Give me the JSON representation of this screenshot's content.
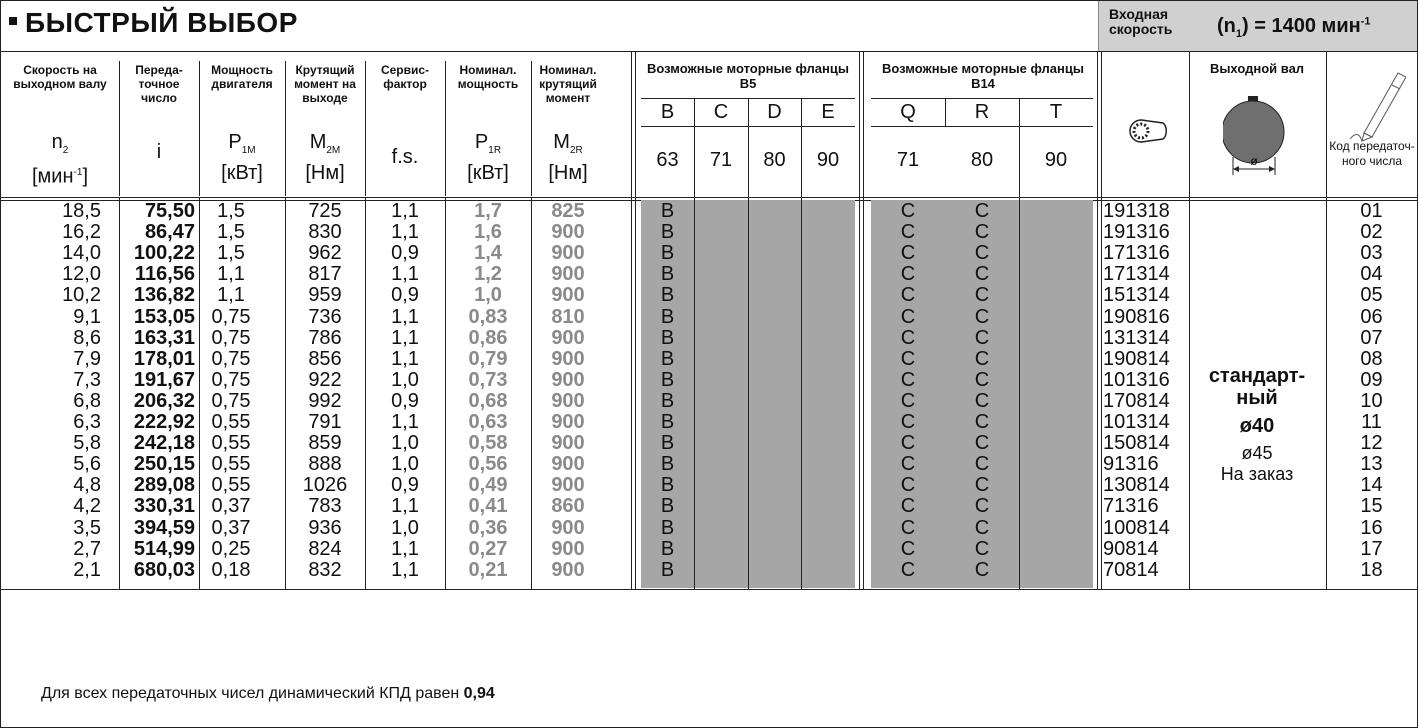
{
  "title": "БЫСТРЫЙ ВЫБОР",
  "input_speed": {
    "label_1": "Входная",
    "label_2": "скорость",
    "value_pre": "(n",
    "value_sub": "1",
    "value_mid": ") = 1400 мин",
    "value_sup": "-1"
  },
  "headers": {
    "speed": {
      "t": "Скорость на выходном валу",
      "sym": "n",
      "sub": "2",
      "unit": "[мин",
      "unit_sup": "-1",
      "unit_end": "]"
    },
    "ratio": {
      "t": "Переда-точное число",
      "sym": "i"
    },
    "power": {
      "t": "Мощность двигателя",
      "sym": "P",
      "sub": "1M",
      "unit": "[кВт]"
    },
    "torque": {
      "t": "Крутящий момент на выходе",
      "sym": "M",
      "sub": "2M",
      "unit": "[Нм]"
    },
    "service": {
      "t": "Сервис-фактор",
      "sym": "f.s."
    },
    "nom_power": {
      "t": "Номинал. мощность",
      "sym": "P",
      "sub": "1R",
      "unit": "[кВт]"
    },
    "nom_torque": {
      "t": "Номинал. крутящий момент",
      "sym": "M",
      "sub": "2R",
      "unit": "[Нм]"
    },
    "b5": {
      "t": "Возможные моторные фланцы B5",
      "cols": [
        "B",
        "C",
        "D",
        "E"
      ],
      "sizes": [
        "63",
        "71",
        "80",
        "90"
      ]
    },
    "b14": {
      "t": "Возможные моторные фланцы B14",
      "cols": [
        "Q",
        "R",
        "T"
      ],
      "sizes": [
        "71",
        "80",
        "90"
      ]
    },
    "shaft": {
      "t": "Выходной вал",
      "diameter_symbol": "ø"
    },
    "code": {
      "t": "Код передаточ-ного числа"
    }
  },
  "rows": [
    {
      "n2": "18,5",
      "i": "75,50",
      "p1m": "1,5",
      "m2m": "725",
      "fs": "1,1",
      "p1r": "1,7",
      "m2r": "825",
      "b": "B",
      "q": "C",
      "r": "C",
      "art": "191318",
      "code": "01"
    },
    {
      "n2": "16,2",
      "i": "86,47",
      "p1m": "1,5",
      "m2m": "830",
      "fs": "1,1",
      "p1r": "1,6",
      "m2r": "900",
      "b": "B",
      "q": "C",
      "r": "C",
      "art": "191316",
      "code": "02"
    },
    {
      "n2": "14,0",
      "i": "100,22",
      "p1m": "1,5",
      "m2m": "962",
      "fs": "0,9",
      "p1r": "1,4",
      "m2r": "900",
      "b": "B",
      "q": "C",
      "r": "C",
      "art": "171316",
      "code": "03"
    },
    {
      "n2": "12,0",
      "i": "116,56",
      "p1m": "1,1",
      "m2m": "817",
      "fs": "1,1",
      "p1r": "1,2",
      "m2r": "900",
      "b": "B",
      "q": "C",
      "r": "C",
      "art": "171314",
      "code": "04"
    },
    {
      "n2": "10,2",
      "i": "136,82",
      "p1m": "1,1",
      "m2m": "959",
      "fs": "0,9",
      "p1r": "1,0",
      "m2r": "900",
      "b": "B",
      "q": "C",
      "r": "C",
      "art": "151314",
      "code": "05"
    },
    {
      "n2": "9,1",
      "i": "153,05",
      "p1m": "0,75",
      "m2m": "736",
      "fs": "1,1",
      "p1r": "0,83",
      "m2r": "810",
      "b": "B",
      "q": "C",
      "r": "C",
      "art": "190816",
      "code": "06"
    },
    {
      "n2": "8,6",
      "i": "163,31",
      "p1m": "0,75",
      "m2m": "786",
      "fs": "1,1",
      "p1r": "0,86",
      "m2r": "900",
      "b": "B",
      "q": "C",
      "r": "C",
      "art": "131314",
      "code": "07"
    },
    {
      "n2": "7,9",
      "i": "178,01",
      "p1m": "0,75",
      "m2m": "856",
      "fs": "1,1",
      "p1r": "0,79",
      "m2r": "900",
      "b": "B",
      "q": "C",
      "r": "C",
      "art": "190814",
      "code": "08"
    },
    {
      "n2": "7,3",
      "i": "191,67",
      "p1m": "0,75",
      "m2m": "922",
      "fs": "1,0",
      "p1r": "0,73",
      "m2r": "900",
      "b": "B",
      "q": "C",
      "r": "C",
      "art": "101316",
      "code": "09"
    },
    {
      "n2": "6,8",
      "i": "206,32",
      "p1m": "0,75",
      "m2m": "992",
      "fs": "0,9",
      "p1r": "0,68",
      "m2r": "900",
      "b": "B",
      "q": "C",
      "r": "C",
      "art": "170814",
      "code": "10"
    },
    {
      "n2": "6,3",
      "i": "222,92",
      "p1m": "0,55",
      "m2m": "791",
      "fs": "1,1",
      "p1r": "0,63",
      "m2r": "900",
      "b": "B",
      "q": "C",
      "r": "C",
      "art": "101314",
      "code": "11"
    },
    {
      "n2": "5,8",
      "i": "242,18",
      "p1m": "0,55",
      "m2m": "859",
      "fs": "1,0",
      "p1r": "0,58",
      "m2r": "900",
      "b": "B",
      "q": "C",
      "r": "C",
      "art": "150814",
      "code": "12"
    },
    {
      "n2": "5,6",
      "i": "250,15",
      "p1m": "0,55",
      "m2m": "888",
      "fs": "1,0",
      "p1r": "0,56",
      "m2r": "900",
      "b": "B",
      "q": "C",
      "r": "C",
      "art": "91316",
      "code": "13"
    },
    {
      "n2": "4,8",
      "i": "289,08",
      "p1m": "0,55",
      "m2m": "1026",
      "fs": "0,9",
      "p1r": "0,49",
      "m2r": "900",
      "b": "B",
      "q": "C",
      "r": "C",
      "art": "130814",
      "code": "14"
    },
    {
      "n2": "4,2",
      "i": "330,31",
      "p1m": "0,37",
      "m2m": "783",
      "fs": "1,1",
      "p1r": "0,41",
      "m2r": "860",
      "b": "B",
      "q": "C",
      "r": "C",
      "art": "71316",
      "code": "15"
    },
    {
      "n2": "3,5",
      "i": "394,59",
      "p1m": "0,37",
      "m2m": "936",
      "fs": "1,0",
      "p1r": "0,36",
      "m2r": "900",
      "b": "B",
      "q": "C",
      "r": "C",
      "art": "100814",
      "code": "16"
    },
    {
      "n2": "2,7",
      "i": "514,99",
      "p1m": "0,25",
      "m2m": "824",
      "fs": "1,1",
      "p1r": "0,27",
      "m2r": "900",
      "b": "B",
      "q": "C",
      "r": "C",
      "art": "90814",
      "code": "17"
    },
    {
      "n2": "2,1",
      "i": "680,03",
      "p1m": "0,18",
      "m2m": "832",
      "fs": "1,1",
      "p1r": "0,21",
      "m2r": "900",
      "b": "B",
      "q": "C",
      "r": "C",
      "art": "70814",
      "code": "18"
    }
  ],
  "shaft_note": {
    "standard_1": "стандарт-",
    "standard_2": "ный",
    "standard_d": "ø40",
    "order_d": "ø45",
    "order": "На заказ"
  },
  "footer": {
    "text": "Для всех передаточных чисел динамический КПД равен ",
    "value": "0,94"
  },
  "colors": {
    "shade": "#a6a6a6",
    "header_box": "#d0d0d0",
    "grey_text": "#8a8a8a"
  }
}
